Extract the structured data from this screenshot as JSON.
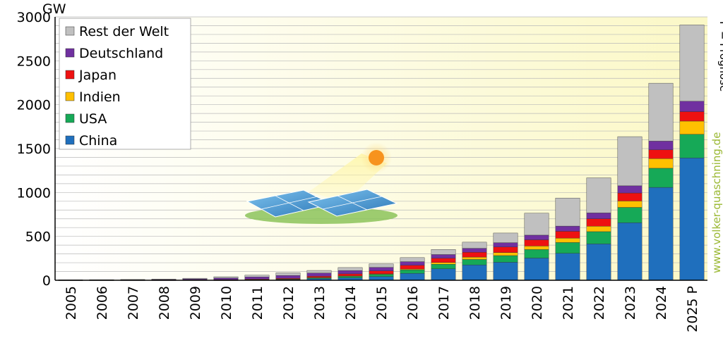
{
  "chart_data": {
    "type": "bar",
    "stacked": true,
    "y_unit": "GW",
    "ylim": [
      0,
      3000
    ],
    "y_ticks": [
      0,
      500,
      1000,
      1500,
      2000,
      2500,
      3000
    ],
    "grid": true,
    "legend_position": "top-left",
    "categories": [
      "2005",
      "2006",
      "2007",
      "2008",
      "2009",
      "2010",
      "2011",
      "2012",
      "2013",
      "2014",
      "2015",
      "2016",
      "2017",
      "2018",
      "2019",
      "2020",
      "2021",
      "2022",
      "2023",
      "2024",
      "2025 P"
    ],
    "series": [
      {
        "name": "China",
        "color": "#1f6fbd",
        "values": [
          0,
          0,
          0,
          0,
          0,
          1,
          3,
          7,
          18,
          28,
          43,
          78,
          131,
          175,
          205,
          253,
          307,
          414,
          655,
          1058,
          1393
        ]
      },
      {
        "name": "USA",
        "color": "#16a957",
        "values": [
          1,
          1,
          1,
          1,
          2,
          3,
          4,
          7,
          12,
          18,
          25,
          40,
          52,
          62,
          76,
          97,
          123,
          140,
          175,
          218,
          270
        ]
      },
      {
        "name": "Indien",
        "color": "#ffc000",
        "values": [
          0,
          0,
          0,
          0,
          0,
          0,
          1,
          1,
          2,
          3,
          5,
          10,
          19,
          27,
          35,
          40,
          50,
          62,
          73,
          110,
          150
        ]
      },
      {
        "name": "Japan",
        "color": "#ee1111",
        "values": [
          1,
          2,
          2,
          2,
          3,
          4,
          5,
          7,
          14,
          24,
          34,
          43,
          49,
          55,
          63,
          71,
          78,
          85,
          91,
          100,
          108
        ]
      },
      {
        "name": "Deutschland",
        "color": "#7030a0",
        "values": [
          2,
          3,
          4,
          6,
          10,
          17,
          25,
          33,
          36,
          38,
          40,
          41,
          42,
          45,
          49,
          53,
          59,
          66,
          82,
          99,
          118
        ]
      },
      {
        "name": "Rest der Welt",
        "color": "#c0c0c0",
        "values": [
          1,
          1,
          2,
          4,
          8,
          15,
          20,
          30,
          30,
          34,
          40,
          46,
          58,
          70,
          110,
          250,
          320,
          400,
          560,
          660,
          870
        ]
      }
    ]
  },
  "annotations": {
    "right_note": "P = Prognose",
    "watermark": "www.volker-quaschning.de"
  }
}
